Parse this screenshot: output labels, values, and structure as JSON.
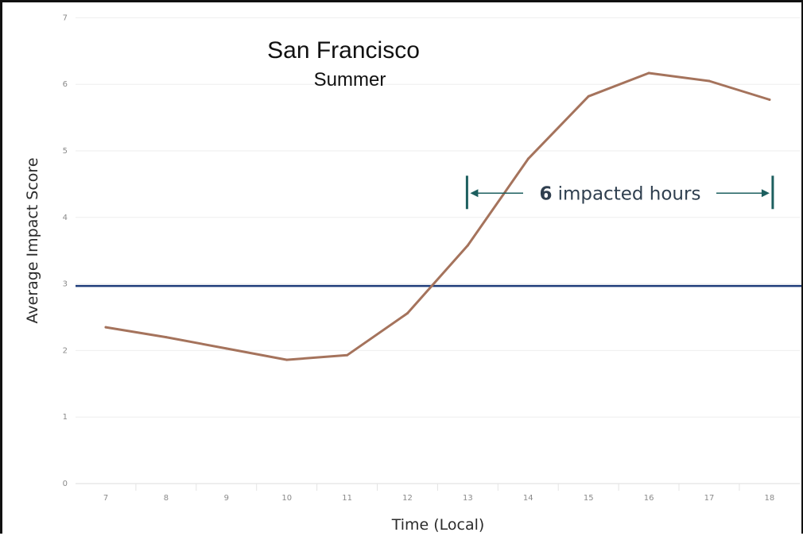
{
  "chart_data": {
    "type": "line",
    "title": "San Francisco",
    "subtitle": "Summer",
    "xlabel": "Time (Local)",
    "ylabel": "Average Impact Score",
    "x": [
      7,
      8,
      9,
      10,
      11,
      12,
      13,
      14,
      15,
      16,
      17,
      18
    ],
    "x_tick_labels": [
      "7",
      "8",
      "9",
      "10",
      "11",
      "12",
      "13",
      "14",
      "15",
      "16",
      "17",
      "18"
    ],
    "y_tick_labels": [
      "0",
      "1",
      "2",
      "3",
      "4",
      "5",
      "6",
      "7"
    ],
    "ylim": [
      0,
      7
    ],
    "xlim": [
      6.5,
      18.5
    ],
    "grid": "horizontal",
    "legend": "none",
    "series": [
      {
        "values": [
          2.35,
          2.2,
          2.03,
          1.86,
          1.93,
          2.56,
          3.58,
          4.88,
          5.82,
          6.17,
          6.05,
          5.77
        ],
        "color": "#a5735c"
      }
    ],
    "threshold": {
      "value": 2.97,
      "color": "#1f3d7a"
    },
    "annotation": {
      "count": "6",
      "text": "impacted hours",
      "start_x": 13,
      "end_x": 18,
      "y": 4.4,
      "color": "#1d5f5f"
    }
  }
}
